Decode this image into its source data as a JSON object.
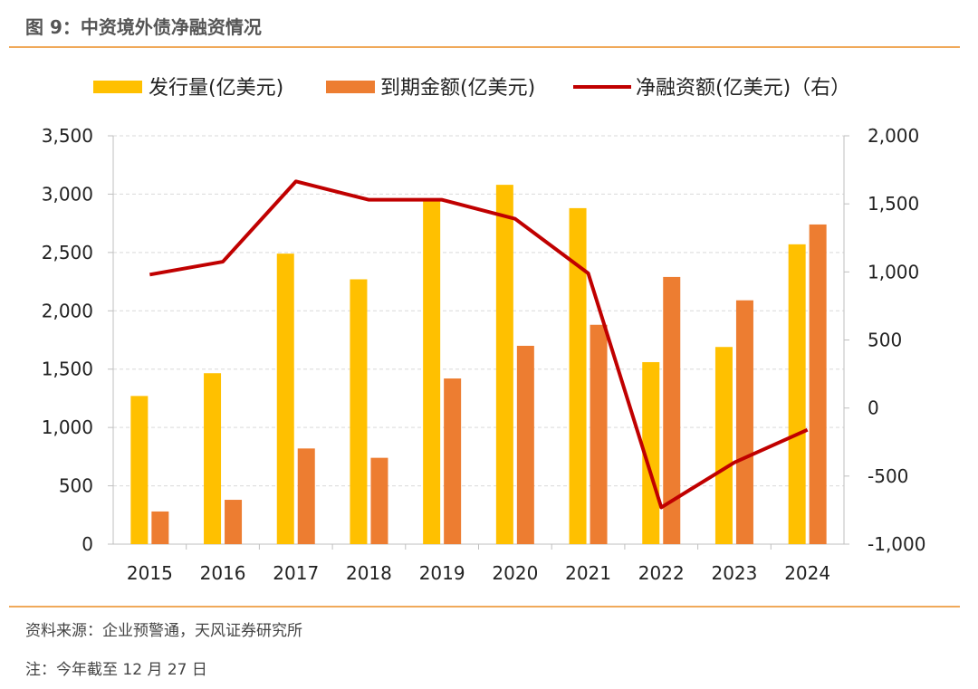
{
  "title": "图 9：中资境外债净融资情况",
  "source": "资料来源：企业预警通，天风证券研究所",
  "note": "注：今年截至 12 月 27 日",
  "colors": {
    "issuance": "#FFC000",
    "maturity": "#ED7D31",
    "net": "#C00000",
    "rule": "#F0A95A"
  },
  "chart_data": {
    "type": "bar",
    "categories": [
      "2015",
      "2016",
      "2017",
      "2018",
      "2019",
      "2020",
      "2021",
      "2022",
      "2023",
      "2024"
    ],
    "series": [
      {
        "name": "发行量(亿美元)",
        "kind": "bar",
        "axis": "left",
        "values": [
          1270,
          1465,
          2490,
          2270,
          2960,
          3080,
          2880,
          1560,
          1690,
          2570
        ]
      },
      {
        "name": "到期金额(亿美元)",
        "kind": "bar",
        "axis": "left",
        "values": [
          280,
          380,
          820,
          740,
          1420,
          1700,
          1880,
          2290,
          2090,
          2740
        ]
      },
      {
        "name": "净融资额(亿美元)（右）",
        "kind": "line",
        "axis": "right",
        "values": [
          980,
          1075,
          1665,
          1530,
          1530,
          1390,
          990,
          -730,
          -400,
          -160
        ]
      }
    ],
    "ylim_left": [
      0,
      3500
    ],
    "ylim_right": [
      -1000,
      2000
    ],
    "yticks_left": [
      "0",
      "500",
      "1,000",
      "1,500",
      "2,000",
      "2,500",
      "3,000",
      "3,500"
    ],
    "yticks_right": [
      "-1,000",
      "-500",
      "0",
      "500",
      "1,000",
      "1,500",
      "2,000"
    ],
    "grid": true,
    "legend": "top"
  }
}
